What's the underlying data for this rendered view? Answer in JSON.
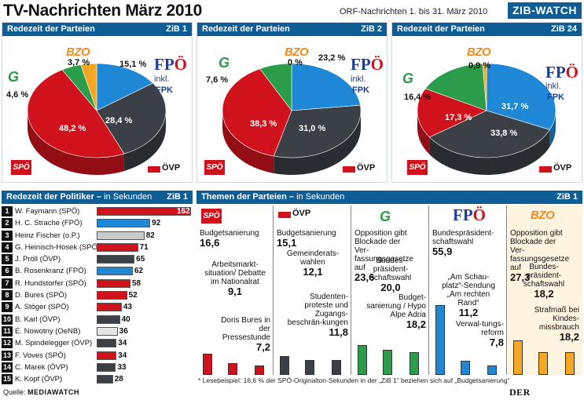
{
  "header": {
    "title": "TV-Nachrichten März 2010",
    "subtitle": "ORF-Nachrichten 1. bis 31. März 2010",
    "brand": "ZIB-WATCH"
  },
  "parties": {
    "spo": "SPÖ",
    "ovp": "ÖVP",
    "gruene": "G",
    "fpo_a": "FP",
    "fpo_b": "Ö",
    "bzo": "BZO",
    "inkl": "inkl.",
    "fpk": "FPK"
  },
  "pies_header": {
    "label": "Redezeit der Parteien"
  },
  "colors": {
    "spo": "#d0121c",
    "ovp": "#3b3f46",
    "fpo": "#1e88d6",
    "gruene": "#2a9c4a",
    "bzo": "#f5a623",
    "header": "#0e5d95"
  },
  "chart_data": [
    {
      "type": "pie",
      "title": "Redezeit der Parteien",
      "panel": "ZiB 1",
      "categories": [
        "SPÖ",
        "ÖVP",
        "FPÖ inkl. FPK",
        "BZO",
        "Grüne"
      ],
      "values": [
        48.2,
        28.4,
        15.1,
        3.7,
        4.6
      ],
      "labels": [
        "48,2 %",
        "28,4 %",
        "15,1 %",
        "3,7 %",
        "4,6 %"
      ]
    },
    {
      "type": "pie",
      "title": "Redezeit der Parteien",
      "panel": "ZiB 2",
      "categories": [
        "SPÖ",
        "ÖVP",
        "FPÖ inkl. FPK",
        "BZO",
        "Grüne"
      ],
      "values": [
        38.3,
        31.0,
        23.2,
        0,
        7.6
      ],
      "labels": [
        "38,3 %",
        "31,0 %",
        "23,2 %",
        "0 %",
        "7,6 %"
      ]
    },
    {
      "type": "pie",
      "title": "Redezeit der Parteien",
      "panel": "ZiB 24",
      "categories": [
        "SPÖ",
        "ÖVP",
        "FPÖ inkl. FPK",
        "BZO",
        "Grüne"
      ],
      "values": [
        17.3,
        33.8,
        31.7,
        0.9,
        16.4
      ],
      "labels": [
        "17,3 %",
        "33,8 %",
        "31,7 %",
        "0,9 %",
        "16,4 %"
      ]
    },
    {
      "type": "bar",
      "title": "Redezeit der Politiker – in Sekunden",
      "panel": "ZiB 1",
      "categories": [
        "W. Faymann (SPÖ)",
        "H. C. Strache (FPÖ)",
        "Heinz Fischer (o.P.)",
        "G. Heinisch-Hosek (SPÖ)",
        "J. Pröll (ÖVP)",
        "B. Rosenkranz (FPÖ)",
        "R. Hundstorfer (SPÖ)",
        "D. Bures (SPÖ)",
        "A. Stöger (SPÖ)",
        "B. Karl (ÖVP)",
        "E. Nowotny (OeNB)",
        "M. Spindelegger (ÖVP)",
        "F. Voves (SPÖ)",
        "C. Marek (ÖVP)",
        "K. Kopf (ÖVP)"
      ],
      "ranks": [
        "1",
        "2",
        "3",
        "4",
        "5",
        "6",
        "7",
        "8",
        "9",
        "10",
        "11",
        "12",
        "13",
        "14",
        "15"
      ],
      "values": [
        162,
        92,
        82,
        71,
        65,
        62,
        58,
        52,
        43,
        40,
        36,
        34,
        34,
        33,
        28
      ],
      "bar_colors": [
        "#d0121c",
        "#1e88d6",
        "#c9c9c9",
        "#d0121c",
        "#3b3f46",
        "#1e88d6",
        "#d0121c",
        "#d0121c",
        "#d0121c",
        "#3b3f46",
        "#e6e6e6",
        "#3b3f46",
        "#d0121c",
        "#3b3f46",
        "#3b3f46"
      ]
    },
    {
      "type": "bar",
      "title": "Themen der Parteien – in Sekunden",
      "panel": "ZiB 1",
      "groups": [
        {
          "party": "SPÖ",
          "color": "#d0121c",
          "topics": [
            {
              "label": "Budgetsanierung",
              "value": 16.6,
              "text": "16,6"
            },
            {
              "label": "Arbeitsmarkt-situation/ Debatte im Nationalrat",
              "value": 9.1,
              "text": "9,1"
            },
            {
              "label": "Doris Bures in der Pressestunde",
              "value": 7.2,
              "text": "7,2"
            }
          ]
        },
        {
          "party": "ÖVP",
          "color": "#3b3f46",
          "topics": [
            {
              "label": "Budgetsanierung",
              "value": 15.1,
              "text": "15,1"
            },
            {
              "label": "Gemeinderats-wahlen",
              "value": 12.1,
              "text": "12,1"
            },
            {
              "label": "Studenten-proteste und Zugangs-beschrän-kungen",
              "value": 11.8,
              "text": "11,8"
            }
          ]
        },
        {
          "party": "Grüne",
          "color": "#2a9c4a",
          "topics": [
            {
              "label": "Opposition gibt Blockade der Ver-fassungsgesetze auf",
              "value": 23.6,
              "text": "23,6"
            },
            {
              "label": "Bundes-präsident-schaftswahl",
              "value": 20.0,
              "text": "20,0"
            },
            {
              "label": "Budget-sanierung / Hypo Alpe Adria",
              "value": 18.2,
              "text": "18,2"
            }
          ]
        },
        {
          "party": "FPÖ",
          "color": "#1e88d6",
          "topics": [
            {
              "label": "Bundespräsident-schaftswahl",
              "value": 55.9,
              "text": "55,9"
            },
            {
              "label": "„Am Schau-platz“-Sendung „Am rechten Rand“",
              "value": 11.2,
              "text": "11,2"
            },
            {
              "label": "Verwal-tungs-reform",
              "value": 7.8,
              "text": "7,8"
            }
          ]
        },
        {
          "party": "BZO",
          "color": "#f5a623",
          "topics": [
            {
              "label": "Opposition gibt Blockade der Ver-fassungsgesetze auf",
              "value": 27.3,
              "text": "27,3"
            },
            {
              "label": "Bundes-präsident-schaftswahl",
              "value": 18.2,
              "text": "18,2"
            },
            {
              "label": "Strafmaß bei Kindes-missbrauch",
              "value": 18.2,
              "text": "18,2"
            }
          ]
        }
      ]
    }
  ],
  "politicians_header": {
    "label": "Redezeit der Politiker –",
    "unit": "in Sekunden",
    "panel": "ZiB 1"
  },
  "topics_header": {
    "label": "Themen der Parteien –",
    "unit": "in Sekunden",
    "panel": "ZiB 1"
  },
  "footnote": "* Lesebeispiel: 16,6 % der SPÖ-Originalton-Sekunden in der „ZiB 1“ beziehen sich auf „Budgetsanierung“",
  "source": {
    "label": "Quelle:",
    "name": "MEDIAWATCH"
  },
  "publisher": "DER STANDARD"
}
